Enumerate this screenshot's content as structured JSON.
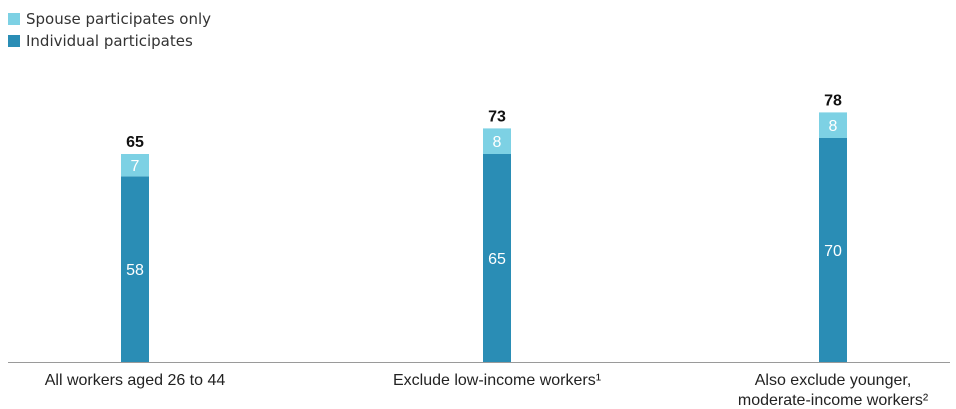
{
  "colors": {
    "individual": "#2A8DB5",
    "spouse": "#7DD1E4",
    "axis": "#9a9a9a"
  },
  "legend": {
    "items": [
      {
        "label": "Spouse participates only",
        "color": "#7DD1E4"
      },
      {
        "label": "Individual participates",
        "color": "#2A8DB5"
      }
    ]
  },
  "chart_data": {
    "type": "bar",
    "stacked": true,
    "categories": [
      [
        "All workers aged 26 to 44"
      ],
      [
        "Exclude low-income workers¹"
      ],
      [
        "Also exclude younger,",
        "moderate-income workers²"
      ]
    ],
    "series": [
      {
        "name": "Individual participates",
        "values": [
          58,
          65,
          70
        ]
      },
      {
        "name": "Spouse participates only",
        "values": [
          7,
          8,
          8
        ]
      }
    ],
    "totals": [
      65,
      73,
      78
    ],
    "ylim": [
      0,
      90
    ]
  }
}
